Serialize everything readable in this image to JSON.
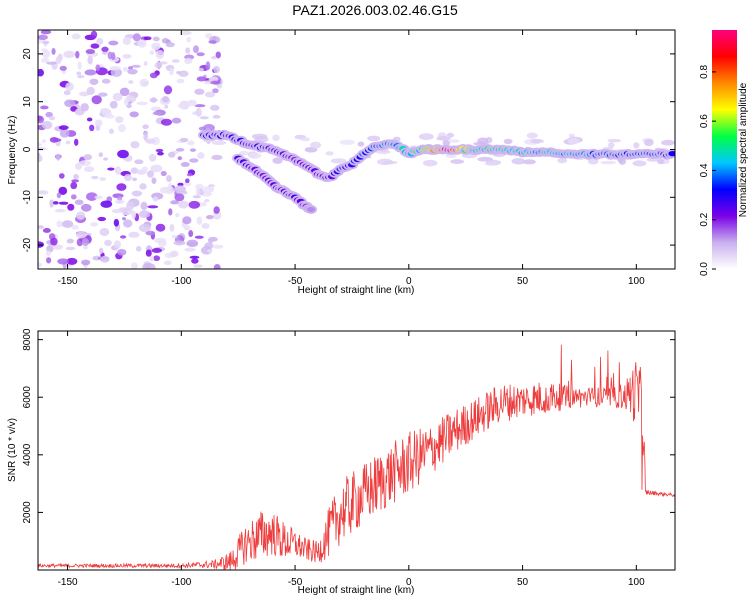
{
  "title": "PAZ1.2026.003.02.46.G15",
  "chart_data": [
    {
      "type": "heatmap",
      "title": "PAZ1.2026.003.02.46.G15",
      "xlabel": "Height of straight line (km)",
      "ylabel": "Frequency (Hz)",
      "xlim": [
        -163,
        117
      ],
      "ylim": [
        -25,
        25
      ],
      "xticks": [
        -150,
        -100,
        -50,
        0,
        50,
        100
      ],
      "yticks": [
        -20,
        -10,
        0,
        10,
        20
      ],
      "colorbar": {
        "label": "Normalized spectral amplitude",
        "range": [
          0,
          0.97
        ],
        "ticks": [
          0.0,
          0.2,
          0.4,
          0.6,
          0.8
        ],
        "colormap": [
          "#ffffff",
          "#c9b0ee",
          "#7a00e6",
          "#0000ff",
          "#00c8ff",
          "#00ff44",
          "#ffff00",
          "#ff8800",
          "#ff0000",
          "#ff0080"
        ]
      },
      "ridge": [
        {
          "x": -90,
          "y": 3,
          "a": 0.35
        },
        {
          "x": -80,
          "y": 3,
          "a": 0.3
        },
        {
          "x": -70,
          "y": 1,
          "a": 0.3
        },
        {
          "x": -60,
          "y": 0,
          "a": 0.3
        },
        {
          "x": -50,
          "y": -2,
          "a": 0.25
        },
        {
          "x": -40,
          "y": -5,
          "a": 0.25
        },
        {
          "x": -35,
          "y": -6,
          "a": 0.3
        },
        {
          "x": -30,
          "y": -4,
          "a": 0.35
        },
        {
          "x": -25,
          "y": -3,
          "a": 0.35
        },
        {
          "x": -20,
          "y": -1,
          "a": 0.4
        },
        {
          "x": -15,
          "y": 0.5,
          "a": 0.4
        },
        {
          "x": -10,
          "y": 1,
          "a": 0.45
        },
        {
          "x": -5,
          "y": 1,
          "a": 0.5
        },
        {
          "x": 0,
          "y": -1,
          "a": 0.5
        },
        {
          "x": 5,
          "y": 0,
          "a": 0.55
        },
        {
          "x": 10,
          "y": 0,
          "a": 0.7
        },
        {
          "x": 15,
          "y": 0,
          "a": 0.97
        },
        {
          "x": 20,
          "y": 0,
          "a": 0.95
        },
        {
          "x": 25,
          "y": 0,
          "a": 0.7
        },
        {
          "x": 30,
          "y": 0,
          "a": 0.55
        },
        {
          "x": 40,
          "y": 0,
          "a": 0.5
        },
        {
          "x": 50,
          "y": -0.5,
          "a": 0.5
        },
        {
          "x": 60,
          "y": -0.5,
          "a": 0.5
        },
        {
          "x": 70,
          "y": -1,
          "a": 0.45
        },
        {
          "x": 80,
          "y": -1,
          "a": 0.45
        },
        {
          "x": 90,
          "y": -1,
          "a": 0.45
        },
        {
          "x": 100,
          "y": -1,
          "a": 0.4
        },
        {
          "x": 110,
          "y": -1,
          "a": 0.4
        },
        {
          "x": 117,
          "y": -1,
          "a": 0.35
        }
      ],
      "branch": [
        {
          "x": -75,
          "y": -2,
          "a": 0.3
        },
        {
          "x": -65,
          "y": -5,
          "a": 0.25
        },
        {
          "x": -58,
          "y": -8,
          "a": 0.25
        },
        {
          "x": -50,
          "y": -10,
          "a": 0.3
        },
        {
          "x": -45,
          "y": -12,
          "a": 0.2
        },
        {
          "x": -42,
          "y": -13,
          "a": 0.15
        }
      ],
      "noise_region": [
        -163,
        -83
      ]
    },
    {
      "type": "line",
      "xlabel": "Height of straight line (km)",
      "ylabel": "SNR (10 * v/v)",
      "xlim": [
        -163,
        117
      ],
      "ylim": [
        0,
        8300
      ],
      "xticks": [
        -150,
        -100,
        -50,
        0,
        50,
        100
      ],
      "yticks": [
        2000,
        4000,
        6000,
        8000
      ],
      "color": "#ee3b3b",
      "envelope": {
        "x": [
          -163,
          -100,
          -85,
          -78,
          -72,
          -65,
          -60,
          -55,
          -50,
          -45,
          -40,
          -35,
          -30,
          -20,
          -10,
          0,
          10,
          20,
          30,
          40,
          50,
          60,
          70,
          80,
          90,
          95,
          100,
          103,
          104,
          110,
          117
        ],
        "mean": [
          150,
          150,
          200,
          300,
          900,
          1200,
          1300,
          1000,
          900,
          700,
          600,
          1300,
          2000,
          2600,
          3200,
          3700,
          4200,
          4800,
          5300,
          5800,
          5900,
          6000,
          6000,
          6000,
          6000,
          6050,
          6200,
          5900,
          2700,
          2650,
          2600
        ],
        "amp": [
          60,
          70,
          150,
          400,
          700,
          900,
          800,
          700,
          500,
          400,
          400,
          900,
          1100,
          1100,
          1100,
          1100,
          900,
          800,
          700,
          700,
          600,
          600,
          400,
          350,
          350,
          500,
          1200,
          900,
          100,
          60,
          60
        ]
      }
    }
  ]
}
